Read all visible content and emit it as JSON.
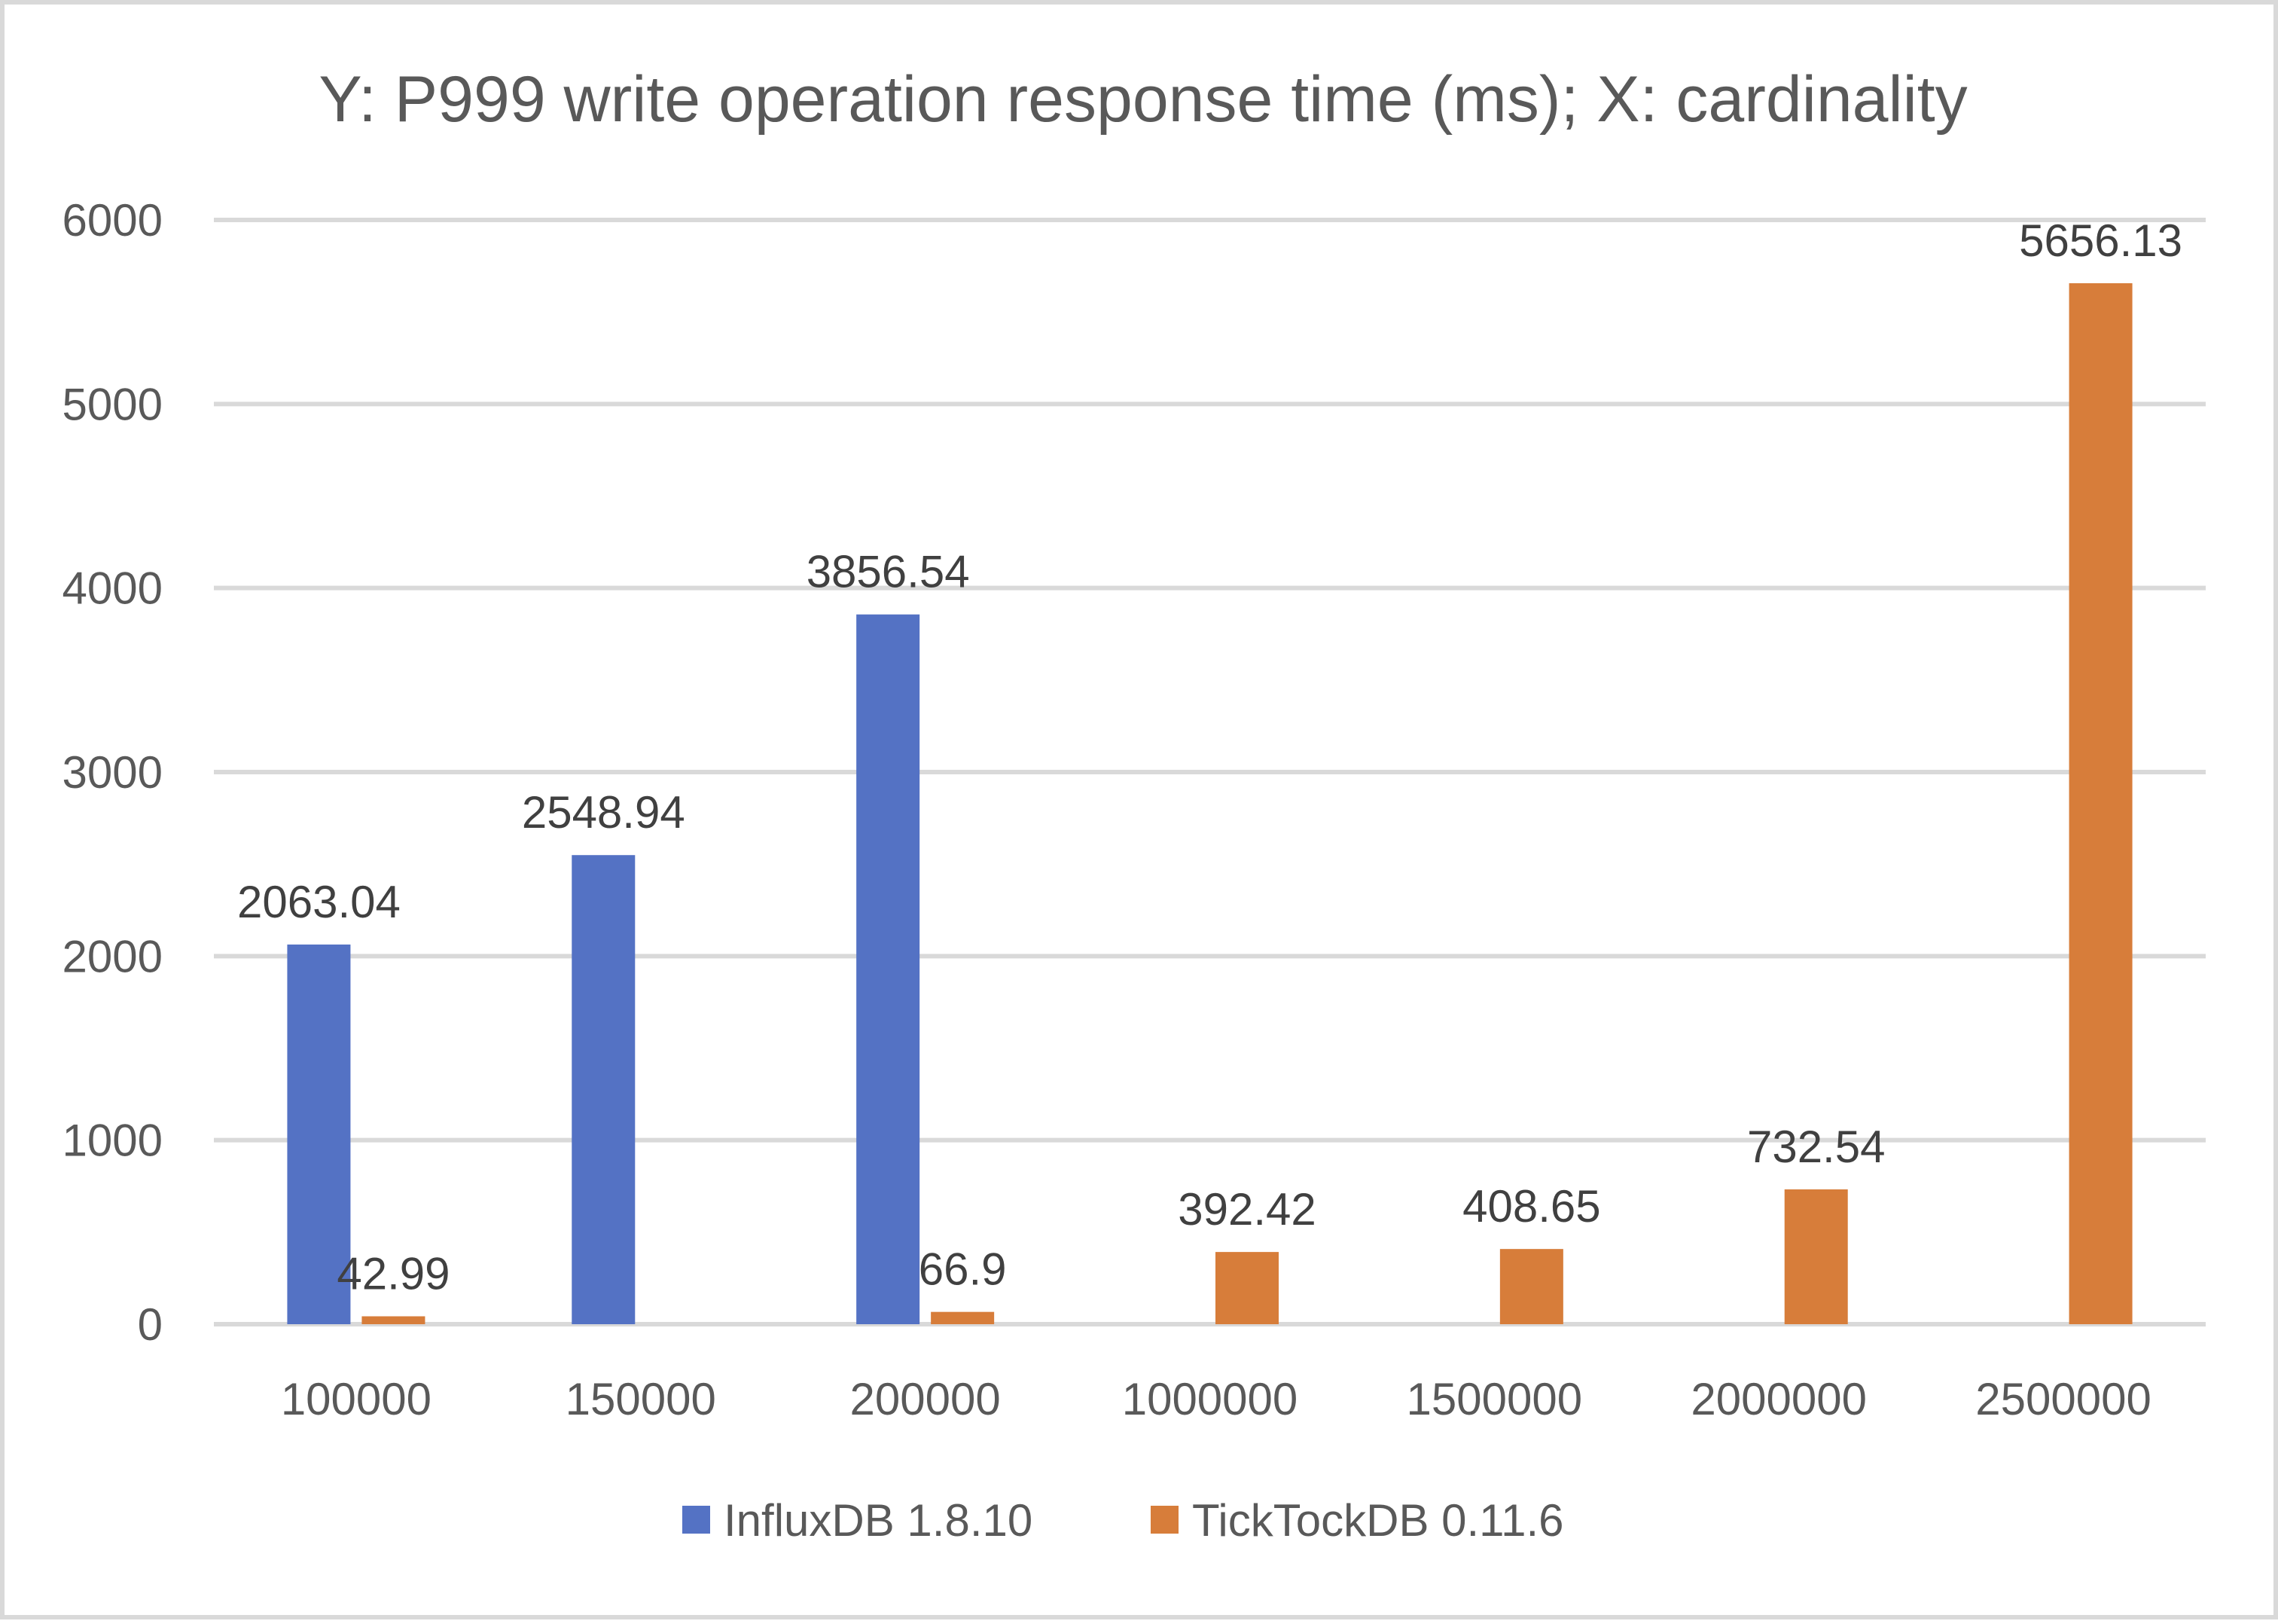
{
  "chart_data": {
    "type": "bar",
    "title": "Y: P999 write operation response time (ms); X: cardinality",
    "xlabel": "",
    "ylabel": "",
    "categories": [
      "100000",
      "150000",
      "200000",
      "1000000",
      "1500000",
      "2000000",
      "2500000"
    ],
    "ylim": [
      0,
      6000
    ],
    "yticks": [
      "0",
      "1000",
      "2000",
      "3000",
      "4000",
      "5000",
      "6000"
    ],
    "grid": true,
    "legend_position": "bottom",
    "series": [
      {
        "name": "InfluxDB 1.8.10",
        "color": "#5472c4",
        "values": [
          2063.04,
          2548.94,
          3856.54,
          null,
          null,
          null,
          null
        ],
        "labels": [
          "2063.04",
          "2548.94",
          "3856.54",
          "",
          "",
          "",
          ""
        ]
      },
      {
        "name": "TickTockDB 0.11.6",
        "color": "#d77d3a",
        "values": [
          42.99,
          null,
          66.9,
          392.42,
          408.65,
          732.54,
          5656.13
        ],
        "labels": [
          "42.99",
          "",
          "66.9",
          "392.42",
          "408.65",
          "732.54",
          "5656.13"
        ]
      }
    ]
  }
}
